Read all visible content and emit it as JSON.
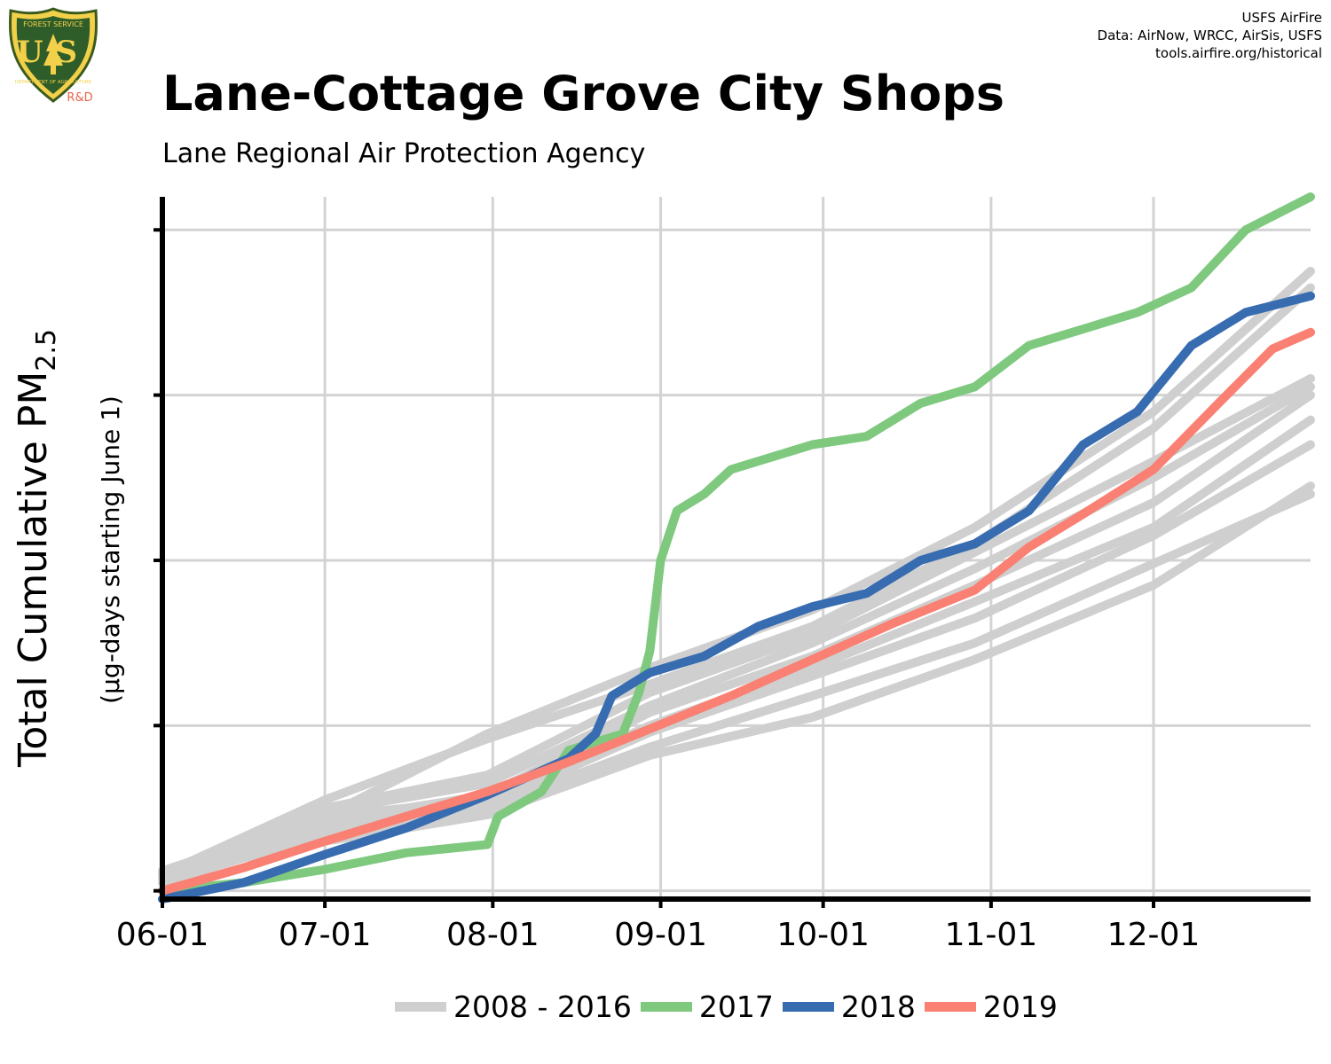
{
  "header": {
    "title": "Lane-Cottage Grove City Shops",
    "subtitle": "Lane Regional Air Protection Agency",
    "credits": [
      "USFS AirFire",
      "Data: AirNow, WRCC, AirSis, USFS",
      "tools.airfire.org/historical"
    ],
    "logo": {
      "text": "US",
      "ring_text": "FOREST SERVICE",
      "bottom_text": "DEPARTMENT OF AGRICULTURE",
      "badge": "R&D",
      "icon": "usfs-shield-icon"
    }
  },
  "colors": {
    "history": "#cfcfcf",
    "y2017": "#7fc97f",
    "y2018": "#386cb0",
    "y2019": "#f98072",
    "grid": "#d3d3d3",
    "badge": "#e8634a"
  },
  "chart_data": {
    "type": "line",
    "title": "Lane-Cottage Grove City Shops",
    "ylabel": "Total Cumulative PM2.5",
    "ylabel_main": "Total Cumulative PM",
    "ylabel_sub": "2.5",
    "ylabel2": "(µg-days starting June 1)",
    "xlabel": "",
    "x_ticks": [
      "06-01",
      "07-01",
      "08-01",
      "09-01",
      "10-01",
      "11-01",
      "12-01"
    ],
    "y_ticks_labeled": false,
    "grid": true,
    "legend_position": "bottom",
    "legend": [
      {
        "label": "2008 - 2016",
        "color": "#cfcfcf"
      },
      {
        "label": "2017",
        "color": "#7fc97f"
      },
      {
        "label": "2018",
        "color": "#386cb0"
      },
      {
        "label": "2019",
        "color": "#f98072"
      }
    ],
    "series": [
      {
        "name": "2008 - 2016",
        "group": "history",
        "values": [
          [
            0,
            0.1
          ],
          [
            30,
            0.3
          ],
          [
            60,
            0.46
          ],
          [
            90,
            0.82
          ],
          [
            120,
            1.05
          ],
          [
            150,
            1.4
          ],
          [
            183,
            1.85
          ],
          [
            212,
            2.45
          ]
        ]
      },
      {
        "name": "2008 - 2016",
        "group": "history",
        "values": [
          [
            0,
            0.05
          ],
          [
            30,
            0.35
          ],
          [
            60,
            0.5
          ],
          [
            90,
            0.87
          ],
          [
            120,
            1.18
          ],
          [
            150,
            1.5
          ],
          [
            183,
            1.98
          ],
          [
            212,
            2.4
          ]
        ]
      },
      {
        "name": "2008 - 2016",
        "group": "history",
        "values": [
          [
            0,
            0.08
          ],
          [
            30,
            0.4
          ],
          [
            60,
            0.52
          ],
          [
            90,
            0.96
          ],
          [
            120,
            1.3
          ],
          [
            150,
            1.65
          ],
          [
            183,
            2.15
          ],
          [
            212,
            2.7
          ]
        ]
      },
      {
        "name": "2008 - 2016",
        "group": "history",
        "values": [
          [
            0,
            0.1
          ],
          [
            30,
            0.45
          ],
          [
            60,
            0.55
          ],
          [
            90,
            1.0
          ],
          [
            120,
            1.35
          ],
          [
            150,
            1.75
          ],
          [
            183,
            2.2
          ],
          [
            212,
            2.85
          ]
        ]
      },
      {
        "name": "2008 - 2016",
        "group": "history",
        "values": [
          [
            0,
            0.12
          ],
          [
            30,
            0.42
          ],
          [
            60,
            0.58
          ],
          [
            90,
            1.08
          ],
          [
            120,
            1.42
          ],
          [
            150,
            1.85
          ],
          [
            183,
            2.35
          ],
          [
            212,
            3.0
          ]
        ]
      },
      {
        "name": "2008 - 2016",
        "group": "history",
        "values": [
          [
            0,
            0.1
          ],
          [
            30,
            0.48
          ],
          [
            60,
            0.65
          ],
          [
            90,
            1.12
          ],
          [
            120,
            1.5
          ],
          [
            150,
            1.95
          ],
          [
            183,
            2.5
          ],
          [
            212,
            3.05
          ]
        ]
      },
      {
        "name": "2008 - 2016",
        "group": "history",
        "values": [
          [
            0,
            0.08
          ],
          [
            30,
            0.5
          ],
          [
            60,
            0.7
          ],
          [
            90,
            1.2
          ],
          [
            120,
            1.55
          ],
          [
            150,
            2.05
          ],
          [
            183,
            2.6
          ],
          [
            212,
            3.1
          ]
        ]
      },
      {
        "name": "2008 - 2016",
        "group": "history",
        "values": [
          [
            0,
            0.1
          ],
          [
            30,
            0.55
          ],
          [
            60,
            0.92
          ],
          [
            90,
            1.25
          ],
          [
            120,
            1.6
          ],
          [
            150,
            2.1
          ],
          [
            183,
            2.8
          ],
          [
            212,
            3.65
          ]
        ]
      },
      {
        "name": "2008 - 2016",
        "group": "history",
        "values": [
          [
            0,
            0.12
          ],
          [
            30,
            0.45
          ],
          [
            60,
            0.95
          ],
          [
            90,
            1.35
          ],
          [
            120,
            1.7
          ],
          [
            150,
            2.2
          ],
          [
            183,
            2.9
          ],
          [
            212,
            3.75
          ]
        ]
      },
      {
        "name": "2017",
        "group": "y2017",
        "values": [
          [
            0,
            0
          ],
          [
            15,
            0.05
          ],
          [
            30,
            0.13
          ],
          [
            45,
            0.23
          ],
          [
            60,
            0.28
          ],
          [
            62,
            0.45
          ],
          [
            70,
            0.6
          ],
          [
            75,
            0.85
          ],
          [
            85,
            0.95
          ],
          [
            88,
            1.2
          ],
          [
            90,
            1.45
          ],
          [
            92,
            2.0
          ],
          [
            95,
            2.3
          ],
          [
            100,
            2.4
          ],
          [
            105,
            2.55
          ],
          [
            120,
            2.7
          ],
          [
            130,
            2.75
          ],
          [
            140,
            2.95
          ],
          [
            150,
            3.05
          ],
          [
            160,
            3.3
          ],
          [
            170,
            3.4
          ],
          [
            180,
            3.5
          ],
          [
            190,
            3.65
          ],
          [
            200,
            4.0
          ],
          [
            212,
            4.2
          ]
        ]
      },
      {
        "name": "2018",
        "group": "y2018",
        "values": [
          [
            0,
            -0.05
          ],
          [
            15,
            0.05
          ],
          [
            30,
            0.22
          ],
          [
            45,
            0.38
          ],
          [
            60,
            0.58
          ],
          [
            75,
            0.8
          ],
          [
            80,
            0.95
          ],
          [
            83,
            1.18
          ],
          [
            90,
            1.32
          ],
          [
            100,
            1.42
          ],
          [
            110,
            1.6
          ],
          [
            120,
            1.72
          ],
          [
            130,
            1.8
          ],
          [
            140,
            2.0
          ],
          [
            150,
            2.1
          ],
          [
            160,
            2.3
          ],
          [
            165,
            2.5
          ],
          [
            170,
            2.7
          ],
          [
            180,
            2.9
          ],
          [
            190,
            3.3
          ],
          [
            200,
            3.5
          ],
          [
            212,
            3.6
          ]
        ]
      },
      {
        "name": "2019",
        "group": "y2019",
        "values": [
          [
            0,
            0
          ],
          [
            15,
            0.14
          ],
          [
            30,
            0.3
          ],
          [
            45,
            0.45
          ],
          [
            60,
            0.6
          ],
          [
            75,
            0.78
          ],
          [
            90,
            0.98
          ],
          [
            105,
            1.18
          ],
          [
            120,
            1.4
          ],
          [
            135,
            1.62
          ],
          [
            150,
            1.82
          ],
          [
            160,
            2.08
          ],
          [
            170,
            2.28
          ],
          [
            183,
            2.55
          ],
          [
            195,
            2.95
          ],
          [
            205,
            3.28
          ],
          [
            212,
            3.38
          ]
        ]
      }
    ],
    "xlim_days": [
      0,
      212
    ],
    "ylim": [
      -0.05,
      4.2
    ]
  }
}
